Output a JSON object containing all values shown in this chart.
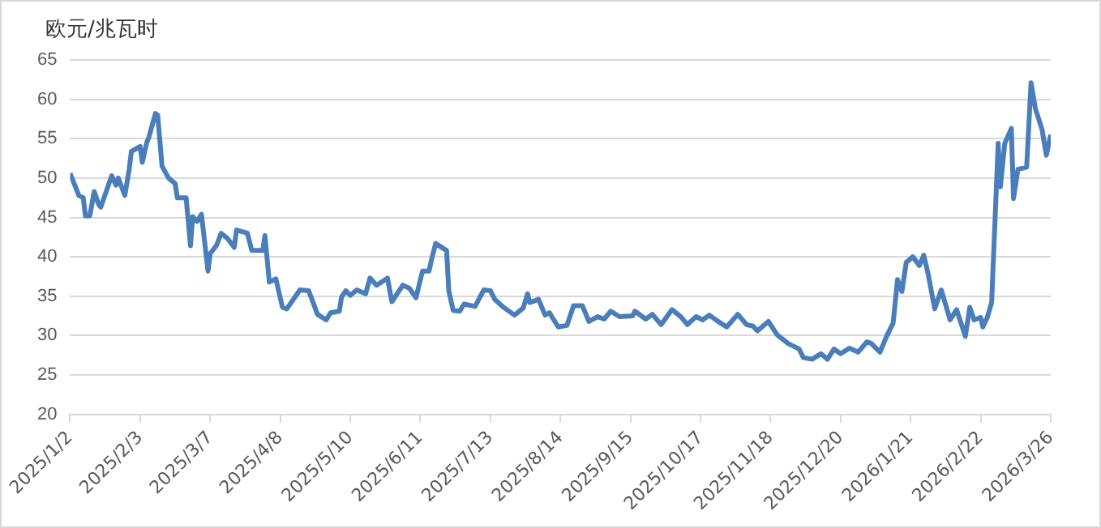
{
  "chart_data": {
    "type": "line",
    "ylabel": "欧元/兆瓦时",
    "x": [
      "2025-01-02",
      "2025-01-06",
      "2025-01-08",
      "2025-01-09",
      "2025-01-11",
      "2025-01-13",
      "2025-01-15",
      "2025-01-16",
      "2025-01-21",
      "2025-01-23",
      "2025-01-24",
      "2025-01-27",
      "2025-01-29",
      "2025-01-30",
      "2025-02-03",
      "2025-02-04",
      "2025-02-06",
      "2025-02-07",
      "2025-02-10",
      "2025-02-11",
      "2025-02-13",
      "2025-02-16",
      "2025-02-19",
      "2025-02-20",
      "2025-02-24",
      "2025-02-26",
      "2025-02-27",
      "2025-03-01",
      "2025-03-03",
      "2025-03-06",
      "2025-03-07",
      "2025-03-10",
      "2025-03-12",
      "2025-03-15",
      "2025-03-18",
      "2025-03-19",
      "2025-03-24",
      "2025-03-26",
      "2025-03-31",
      "2025-04-01",
      "2025-04-03",
      "2025-04-06",
      "2025-04-09",
      "2025-04-11",
      "2025-04-17",
      "2025-04-21",
      "2025-04-23",
      "2025-04-25",
      "2025-04-29",
      "2025-05-01",
      "2025-05-05",
      "2025-05-06",
      "2025-05-08",
      "2025-05-10",
      "2025-05-13",
      "2025-05-17",
      "2025-05-19",
      "2025-05-22",
      "2025-05-27",
      "2025-05-29",
      "2025-06-03",
      "2025-06-06",
      "2025-06-09",
      "2025-06-12",
      "2025-06-15",
      "2025-06-16",
      "2025-06-18",
      "2025-06-23",
      "2025-06-24",
      "2025-06-26",
      "2025-06-29",
      "2025-07-01",
      "2025-07-06",
      "2025-07-10",
      "2025-07-13",
      "2025-07-15",
      "2025-07-19",
      "2025-07-24",
      "2025-07-28",
      "2025-07-30",
      "2025-07-31",
      "2025-08-04",
      "2025-08-07",
      "2025-08-09",
      "2025-08-13",
      "2025-08-17",
      "2025-08-20",
      "2025-08-24",
      "2025-08-27",
      "2025-08-31",
      "2025-09-03",
      "2025-09-06",
      "2025-09-10",
      "2025-09-16",
      "2025-09-17",
      "2025-09-22",
      "2025-09-25",
      "2025-09-29",
      "2025-10-04",
      "2025-10-08",
      "2025-10-11",
      "2025-10-15",
      "2025-10-18",
      "2025-10-21",
      "2025-10-25",
      "2025-10-29",
      "2025-11-03",
      "2025-11-07",
      "2025-11-10",
      "2025-11-12",
      "2025-11-17",
      "2025-11-21",
      "2025-11-26",
      "2025-12-01",
      "2025-12-03",
      "2025-12-07",
      "2025-12-11",
      "2025-12-14",
      "2025-12-17",
      "2025-12-20",
      "2025-12-24",
      "2025-12-28",
      "2026-01-01",
      "2026-01-03",
      "2026-01-07",
      "2026-01-10",
      "2026-01-13",
      "2026-01-15",
      "2026-01-17",
      "2026-01-19",
      "2026-01-22",
      "2026-01-25",
      "2026-01-27",
      "2026-01-29",
      "2026-02-01",
      "2026-02-04",
      "2026-02-08",
      "2026-02-11",
      "2026-02-15",
      "2026-02-17",
      "2026-02-19",
      "2026-02-22",
      "2026-02-23",
      "2026-02-25",
      "2026-02-27",
      "2026-03-02",
      "2026-03-03",
      "2026-03-05",
      "2026-03-08",
      "2026-03-09",
      "2026-03-11",
      "2026-03-15",
      "2026-03-17",
      "2026-03-19",
      "2026-03-22",
      "2026-03-24",
      "2026-03-26"
    ],
    "series": [
      {
        "color": "#4a7ebb",
        "values": [
          50.6,
          47.8,
          47.5,
          45.2,
          45.2,
          48.3,
          46.7,
          46.3,
          50.3,
          49.1,
          50.0,
          47.8,
          51.1,
          53.4,
          54.0,
          52.0,
          54.5,
          55.2,
          58.2,
          58.0,
          51.5,
          50.0,
          49.3,
          47.5,
          47.5,
          41.4,
          45.1,
          44.5,
          45.4,
          38.2,
          40.4,
          41.5,
          43.0,
          42.3,
          41.2,
          43.4,
          43.0,
          40.8,
          40.8,
          42.7,
          36.8,
          37.2,
          33.6,
          33.4,
          35.8,
          35.7,
          34.2,
          32.7,
          32.0,
          32.9,
          33.1,
          34.9,
          35.7,
          35.1,
          35.8,
          35.3,
          37.3,
          36.4,
          37.3,
          34.3,
          36.4,
          36.0,
          34.8,
          38.2,
          38.2,
          39.5,
          41.7,
          40.8,
          35.7,
          33.2,
          33.1,
          34.0,
          33.7,
          35.8,
          35.7,
          34.6,
          33.6,
          32.6,
          33.5,
          35.3,
          34.2,
          34.6,
          32.6,
          32.9,
          31.1,
          31.3,
          33.8,
          33.8,
          31.8,
          32.4,
          32.1,
          33.1,
          32.4,
          32.5,
          33.1,
          32.1,
          32.7,
          31.4,
          33.3,
          32.4,
          31.4,
          32.4,
          32.0,
          32.6,
          31.8,
          31.1,
          32.7,
          31.4,
          31.2,
          30.6,
          31.8,
          30.1,
          29.0,
          28.3,
          27.2,
          27.0,
          27.7,
          27.0,
          28.3,
          27.7,
          28.4,
          27.9,
          29.2,
          29.0,
          27.9,
          29.9,
          31.6,
          37.1,
          35.6,
          39.3,
          40.0,
          38.9,
          40.2,
          37.8,
          33.4,
          35.8,
          32.0,
          33.3,
          29.9,
          33.6,
          32.0,
          32.3,
          31.1,
          32.3,
          34.2,
          54.4,
          48.9,
          54.4,
          56.3,
          47.4,
          51.1,
          51.4,
          62.1,
          58.8,
          56.2,
          52.9,
          55.5
        ]
      }
    ],
    "xlim": [
      "2025-01-02",
      "2026-03-26"
    ],
    "xticks": [
      {
        "value": "2025-01-02",
        "label": "2025/1/2"
      },
      {
        "value": "2025-02-03",
        "label": "2025/2/3"
      },
      {
        "value": "2025-03-07",
        "label": "2025/3/7"
      },
      {
        "value": "2025-04-08",
        "label": "2025/4/8"
      },
      {
        "value": "2025-05-10",
        "label": "2025/5/10"
      },
      {
        "value": "2025-06-11",
        "label": "2025/6/11"
      },
      {
        "value": "2025-07-13",
        "label": "2025/7/13"
      },
      {
        "value": "2025-08-14",
        "label": "2025/8/14"
      },
      {
        "value": "2025-09-15",
        "label": "2025/9/15"
      },
      {
        "value": "2025-10-17",
        "label": "2025/10/17"
      },
      {
        "value": "2025-11-18",
        "label": "2025/11/18"
      },
      {
        "value": "2025-12-20",
        "label": "2025/12/20"
      },
      {
        "value": "2026-01-21",
        "label": "2026/1/21"
      },
      {
        "value": "2026-02-22",
        "label": "2026/2/22"
      },
      {
        "value": "2026-03-26",
        "label": "2026/3/26"
      }
    ],
    "ylim": [
      20,
      65
    ],
    "yticks": [
      20,
      25,
      30,
      35,
      40,
      45,
      50,
      55,
      60,
      65
    ],
    "grid": "y",
    "legend": false,
    "marker": "none",
    "line_style": "solid"
  }
}
